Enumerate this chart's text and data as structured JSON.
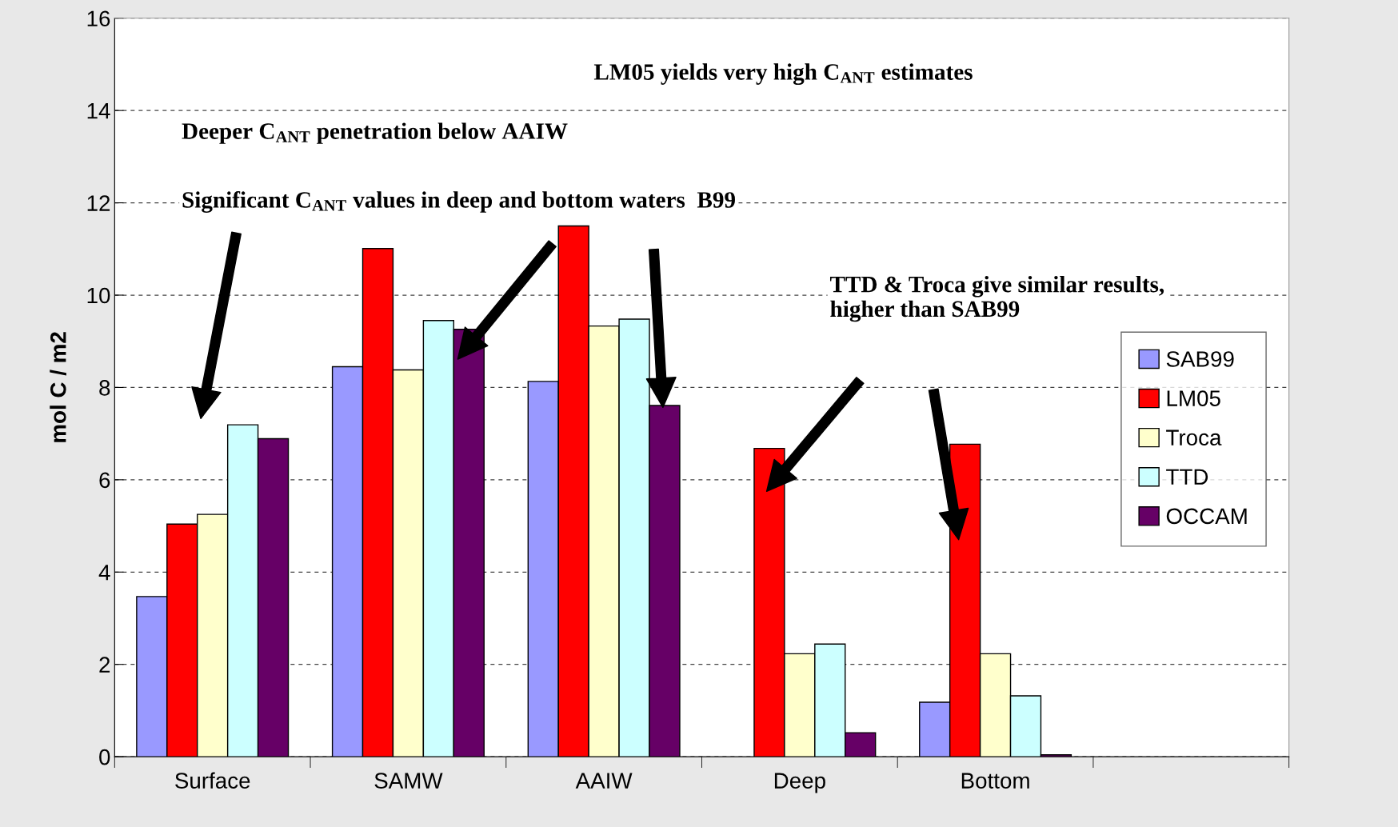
{
  "chart_data": {
    "type": "bar",
    "categories": [
      "Surface",
      "SAMW",
      "AAIW",
      "Deep",
      "Bottom",
      null
    ],
    "series": [
      {
        "name": "SAB99",
        "color": "#9999ff",
        "values": [
          3.47,
          8.45,
          8.13,
          null,
          1.18,
          null
        ]
      },
      {
        "name": "LM05",
        "color": "#ff0000",
        "values": [
          5.04,
          11.01,
          11.5,
          6.68,
          6.77,
          null
        ]
      },
      {
        "name": "Troca",
        "color": "#ffffcc",
        "values": [
          5.25,
          8.38,
          9.33,
          2.23,
          2.23,
          null
        ]
      },
      {
        "name": "TTD",
        "color": "#ccffff",
        "values": [
          7.19,
          9.45,
          9.48,
          2.44,
          1.32,
          null
        ]
      },
      {
        "name": "OCCAM",
        "color": "#660066",
        "values": [
          6.89,
          9.26,
          7.61,
          0.52,
          0.04,
          null
        ]
      }
    ],
    "ylabel": "mol C / m2",
    "ylim": [
      0,
      16
    ],
    "yticks": [
      0,
      2,
      4,
      6,
      8,
      10,
      12,
      14,
      16
    ],
    "grid": "y",
    "legend": "right",
    "annotations": [
      "LM05 yields very high C$_{ANT}$ estimates",
      "Deeper C$_{ANT}$ penetration below AAIW",
      "Significant C$_{ANT}$ values in deep and bottom waters  B99",
      "TTD & Troca give similar results,\nhigher than SAB99"
    ]
  }
}
